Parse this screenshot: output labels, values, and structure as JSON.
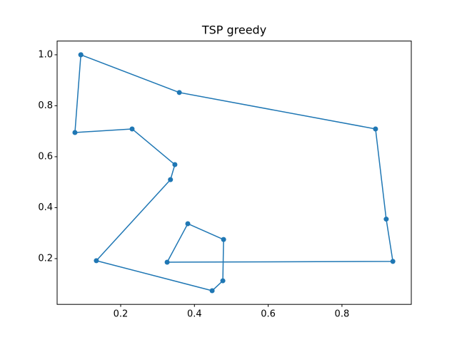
{
  "chart_data": {
    "type": "line",
    "title": "TSP greedy",
    "x": [
      0.092,
      0.359,
      0.891,
      0.92,
      0.938,
      0.326,
      0.382,
      0.479,
      0.477,
      0.448,
      0.134,
      0.335,
      0.347,
      0.231,
      0.076,
      0.092
    ],
    "series": [
      {
        "color": "#1f77b4",
        "values": [
          1.0,
          0.852,
          0.709,
          0.355,
          0.189,
          0.186,
          0.337,
          0.275,
          0.113,
          0.074,
          0.192,
          0.51,
          0.569,
          0.709,
          0.695,
          1.0
        ]
      }
    ],
    "xlim": [
      0.0277,
      0.988
    ],
    "ylim": [
      0.0204,
      1.054
    ],
    "xticks": [
      0.2,
      0.4,
      0.6,
      0.8
    ],
    "yticks": [
      0.2,
      0.4,
      0.6,
      0.8,
      {
        "value": 1.0,
        "label": "1.0"
      }
    ]
  }
}
